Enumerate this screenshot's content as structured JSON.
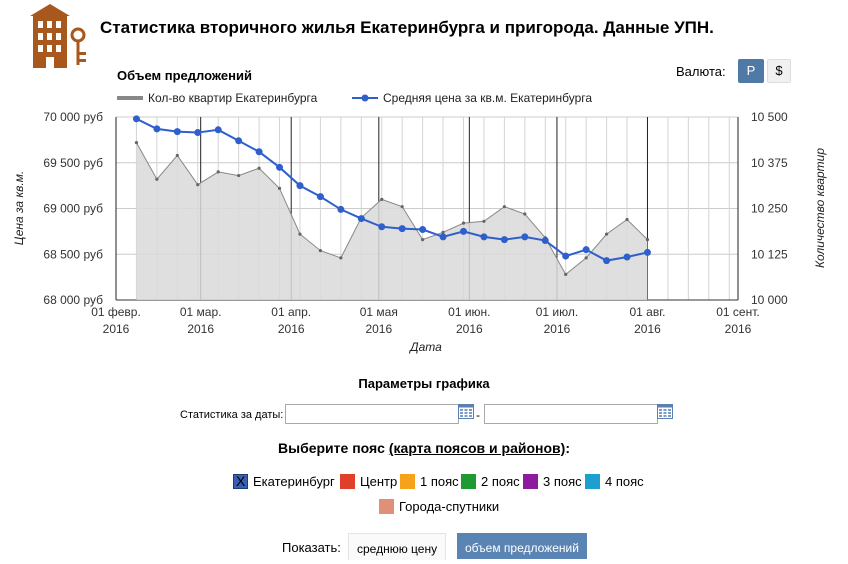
{
  "header": {
    "title": "Статистика вторичного жилья Екатеринбурга и пригорода. Данные УПН."
  },
  "currency": {
    "label": "Валюта:",
    "options": [
      "Р",
      "$"
    ],
    "selected": "Р",
    "accent": "#4f7aa8"
  },
  "chart_data": {
    "type": "line",
    "title": "Объем предложений",
    "xlabel": "Дата",
    "ylabel_left": "Цена за кв.м.",
    "ylabel_right": "Количество квартир",
    "y_left_ticks": [
      "70 000 руб",
      "69 500 руб",
      "69 000 руб",
      "68 500 руб",
      "68 000 руб"
    ],
    "y_left_range": [
      68000,
      70000
    ],
    "y_right_ticks": [
      "10 500",
      "10 375",
      "10 250",
      "10 125",
      "10 000"
    ],
    "y_right_range": [
      10000,
      10500
    ],
    "x_ticks": [
      {
        "line1": "01 февр.",
        "line2": "2016"
      },
      {
        "line1": "01 мар.",
        "line2": "2016"
      },
      {
        "line1": "01 апр.",
        "line2": "2016"
      },
      {
        "line1": "01 мая",
        "line2": "2016"
      },
      {
        "line1": "01 июн.",
        "line2": "2016"
      },
      {
        "line1": "01 июл.",
        "line2": "2016"
      },
      {
        "line1": "01 авг.",
        "line2": "2016"
      },
      {
        "line1": "01 сент.",
        "line2": "2016"
      }
    ],
    "x_range_days": [
      0,
      213
    ],
    "x_ticks_days": [
      0,
      29,
      60,
      90,
      121,
      151,
      182,
      213
    ],
    "legend_position": "top-left",
    "series": [
      {
        "name": "Кол-во квартир Екатеринбурга",
        "axis": "right",
        "color": "#888888",
        "fill": "#d9d9d9",
        "x_days": [
          7,
          14,
          21,
          28,
          35,
          42,
          49,
          56,
          63,
          70,
          77,
          84,
          91,
          98,
          105,
          112,
          119,
          126,
          133,
          140,
          147,
          154,
          161,
          168,
          175,
          182,
          189
        ],
        "values": [
          10430,
          10330,
          10395,
          10315,
          10350,
          10340,
          10360,
          10305,
          10180,
          10135,
          10115,
          10225,
          10275,
          10255,
          10165,
          10185,
          10210,
          10215,
          10255,
          10235,
          10170,
          10070,
          10115,
          10180,
          10220,
          10165,
          null
        ]
      },
      {
        "name": "Средняя цена за кв.м. Екатеринбурга",
        "axis": "left",
        "color": "#2e5fcc",
        "x_days": [
          7,
          14,
          21,
          28,
          35,
          42,
          49,
          56,
          63,
          70,
          77,
          84,
          91,
          98,
          105,
          112,
          119,
          126,
          133,
          140,
          147,
          154,
          161,
          168,
          175,
          182
        ],
        "values": [
          69980,
          69870,
          69840,
          69830,
          69860,
          69740,
          69620,
          69450,
          69250,
          69130,
          68990,
          68890,
          68800,
          68780,
          68770,
          68690,
          68750,
          68690,
          68660,
          68690,
          68650,
          68480,
          68550,
          68430,
          68470,
          68520
        ]
      }
    ]
  },
  "params": {
    "title": "Параметры графика",
    "dates_label": "Статистика за даты:",
    "date_from": "",
    "date_to": "",
    "dash": "-"
  },
  "zones": {
    "heading_prefix": "Выберите пояс ",
    "heading_link": "(карта поясов и районов)",
    "heading_suffix": ":",
    "items": [
      {
        "label": "Екатеринбург",
        "color": "#3b5fb0",
        "checked": true
      },
      {
        "label": "Центр",
        "color": "#e0402a",
        "checked": false
      },
      {
        "label": "1 пояс",
        "color": "#f7a21b",
        "checked": false
      },
      {
        "label": "2 пояс",
        "color": "#1f9a33",
        "checked": false
      },
      {
        "label": "3 пояс",
        "color": "#8e1aa0",
        "checked": false
      },
      {
        "label": "4 пояс",
        "color": "#1d9fd0",
        "checked": false
      },
      {
        "label": "Города-спутники",
        "color": "#e08f78",
        "checked": false
      }
    ]
  },
  "show": {
    "label": "Показать:",
    "price_button": "среднюю цену",
    "volume_button": "объем предложений",
    "selected": "объем предложений"
  }
}
